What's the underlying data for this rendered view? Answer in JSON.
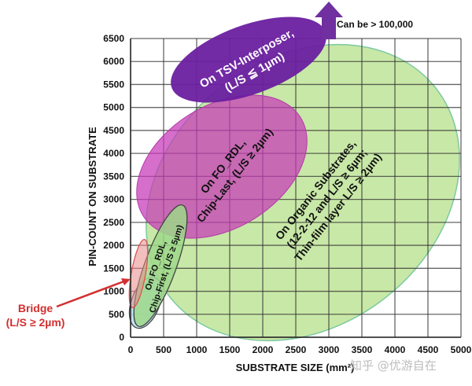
{
  "chart_data": {
    "type": "scatter",
    "title": "",
    "xlabel": "SUBSTRATE SIZE (mm²)",
    "ylabel": "PIN-COUNT ON SUBSTRATE",
    "xlim": [
      0,
      5000
    ],
    "ylim": [
      0,
      6500
    ],
    "grid": true,
    "x_ticks": [
      "0",
      "500",
      "1000",
      "1500",
      "2000",
      "2500",
      "3000",
      "3500",
      "4000",
      "4500",
      "5000"
    ],
    "y_ticks": [
      "0",
      "500",
      "1000",
      "1500",
      "2000",
      "2500",
      "3000",
      "3500",
      "4000",
      "4500",
      "5000",
      "5500",
      "6000",
      "6500"
    ],
    "regions": [
      {
        "name": "Organic Substrates",
        "label_lines": [
          "On Organic Substrates,",
          "(12-2-12 and L/S ≥ 6µm;",
          "Thin-film layer L/S ≥ 2µm)"
        ],
        "color": "#b5e08a",
        "approx_x_range": [
          100,
          5000
        ],
        "approx_y_range": [
          0,
          5700
        ]
      },
      {
        "name": "TSV-Interposer",
        "label_lines": [
          "On  TSV-Interposer,",
          "(L/S ≦ 1µm)"
        ],
        "color": "#6a1fa0",
        "approx_x_range": [
          600,
          3000
        ],
        "approx_y_range": [
          4800,
          6900
        ]
      },
      {
        "name": "FO_RDL Chip-Last",
        "label_lines": [
          "On FO_RDL,",
          "Chip-Last, (L/S ≥ 2µm)"
        ],
        "color": "#cc44bb",
        "approx_x_range": [
          100,
          2600
        ],
        "approx_y_range": [
          2500,
          5200
        ]
      },
      {
        "name": "FO_RDL Chip-First",
        "label_lines": [
          "On  FO_RDL,",
          "Chip-First, (L/S ≥ 5µm)"
        ],
        "color": "#9ed889",
        "approx_x_range": [
          50,
          800
        ],
        "approx_y_range": [
          200,
          2700
        ]
      },
      {
        "name": "Bridge",
        "label_lines": [
          "Bridge",
          "(L/S ≥ 2µm)"
        ],
        "color": "#e88a8a",
        "approx_x_range": [
          30,
          200
        ],
        "approx_y_range": [
          700,
          2100
        ]
      },
      {
        "name": "Small base region",
        "label_lines": [],
        "color": "#b8dff0",
        "approx_x_range": [
          0,
          300
        ],
        "approx_y_range": [
          200,
          1500
        ]
      }
    ],
    "annotations": [
      {
        "text": "Can be > 100,000",
        "type": "arrow-up",
        "color": "#7030a0"
      },
      {
        "text": "Bridge (L/S ≥ 2µm)",
        "type": "arrow",
        "color": "#d32f2f"
      }
    ]
  },
  "labels": {
    "xlabel": "SUBSTRATE SIZE (mm²)",
    "ylabel": "PIN-COUNT ON SUBSTRATE",
    "tsv_line1": "On  TSV-Interposer,",
    "tsv_line2": "(L/S ≦ 1µm)",
    "fordl_last_line1": "On FO_RDL,",
    "fordl_last_line2": "Chip-Last, (L/S ≥ 2µm)",
    "organic_line1": "On Organic Substrates,",
    "organic_line2": "(12-2-12 and L/S ≥ 6µm;",
    "organic_line3": "Thin-film layer L/S ≥ 2µm)",
    "fordl_first_line1": "On  FO_RDL,",
    "fordl_first_line2": "Chip-First, (L/S ≥ 5µm)",
    "bridge_line1": "Bridge",
    "bridge_line2": "(L/S ≥ 2µm)",
    "can_be": "Can be > 100,000",
    "watermark": "知乎 @优游自在"
  },
  "x_ticks": [
    "0",
    "500",
    "1000",
    "1500",
    "2000",
    "2500",
    "3000",
    "3500",
    "4000",
    "4500",
    "5000"
  ],
  "y_ticks": [
    "0",
    "500",
    "1000",
    "1500",
    "2000",
    "2500",
    "3000",
    "3500",
    "4000",
    "4500",
    "5000",
    "5500",
    "6000",
    "6500"
  ]
}
